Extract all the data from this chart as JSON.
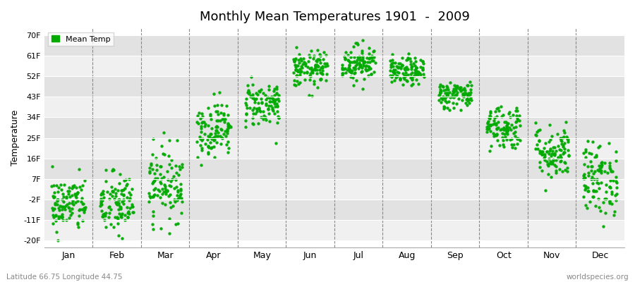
{
  "title": "Monthly Mean Temperatures 1901  -  2009",
  "ylabel": "Temperature",
  "yticks": [
    -20,
    -11,
    -2,
    7,
    16,
    25,
    34,
    43,
    52,
    61,
    70
  ],
  "ytick_labels": [
    "-20F",
    "-11F",
    "-2F",
    "7F",
    "16F",
    "25F",
    "34F",
    "43F",
    "52F",
    "61F",
    "70F"
  ],
  "ylim": [
    -23,
    73
  ],
  "months": [
    "Jan",
    "Feb",
    "Mar",
    "Apr",
    "May",
    "Jun",
    "Jul",
    "Aug",
    "Sep",
    "Oct",
    "Nov",
    "Dec"
  ],
  "dot_color": "#00AA00",
  "bg_color_light": "#F0F0F0",
  "bg_color_stripe": "#E2E2E2",
  "scatter_size": 10,
  "legend_label": "Mean Temp",
  "subtitle_left": "Latitude 66.75 Longitude 44.75",
  "subtitle_right": "worldspecies.org",
  "num_years": 109,
  "monthly_means": [
    -4,
    -4,
    5,
    29,
    40,
    55,
    58,
    54,
    44,
    30,
    19,
    7
  ],
  "monthly_stds": [
    6,
    7,
    8,
    6,
    5,
    4,
    4,
    3,
    3,
    5,
    6,
    8
  ]
}
